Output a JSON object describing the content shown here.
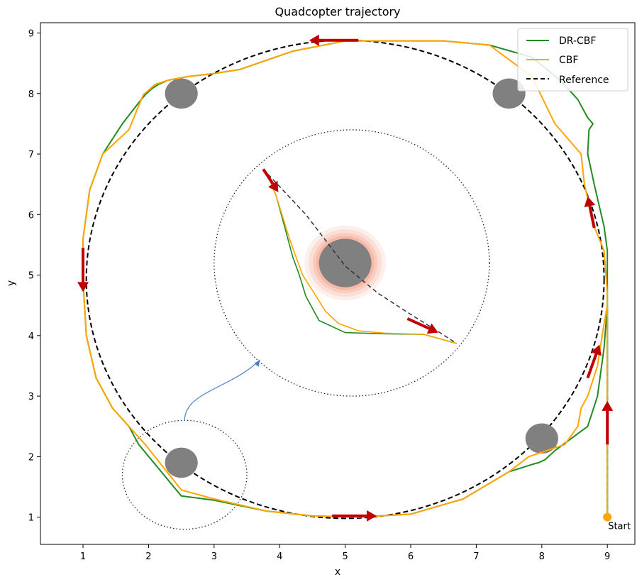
{
  "chart_data": {
    "type": "line",
    "title": "Quadcopter trajectory",
    "xlabel": "x",
    "ylabel": "y",
    "xlim": [
      0.35,
      9.42
    ],
    "ylim": [
      0.55,
      9.17
    ],
    "xticks": [
      1,
      2,
      3,
      4,
      5,
      6,
      7,
      8,
      9
    ],
    "yticks": [
      1,
      2,
      3,
      4,
      5,
      6,
      7,
      8,
      9
    ],
    "grid": false,
    "legend_position": "top-right",
    "legend": [
      "DR-CBF",
      "CBF",
      "Reference"
    ],
    "colors": {
      "dr_cbf": "#228B22",
      "cbf": "#FFA500",
      "reference": "#000000",
      "arrow": "#C00000",
      "obstacle": "#808080",
      "start": "#FFA500",
      "inset_connector": "#4A7EC7",
      "halo": "#F08060"
    },
    "series": [
      {
        "name": "DR-CBF",
        "style": "solid",
        "x": [
          9.0,
          9.0,
          9.0,
          9.0,
          9.0,
          9.0,
          8.95,
          8.8,
          8.7,
          8.72,
          8.78,
          8.7,
          8.55,
          8.3,
          7.85,
          7.2,
          6.5,
          5.6,
          5.0,
          4.2,
          3.4,
          3.0,
          2.6,
          2.3,
          2.15,
          2.05,
          1.95,
          1.85,
          1.6,
          1.3,
          1.1,
          1.0,
          1.0,
          1.05,
          1.2,
          1.45,
          1.7,
          1.7,
          1.85,
          2.5,
          3.0,
          3.8,
          4.5,
          5.2,
          6.0,
          6.8,
          7.5,
          7.85,
          7.95,
          8.05,
          8.2,
          8.45,
          8.7,
          8.85,
          8.95,
          9.0
        ],
        "y": [
          1.0,
          2.0,
          3.0,
          3.9,
          4.7,
          5.4,
          5.8,
          6.5,
          7.0,
          7.4,
          7.5,
          7.6,
          7.9,
          8.2,
          8.6,
          8.8,
          8.87,
          8.87,
          8.87,
          8.7,
          8.4,
          8.33,
          8.28,
          8.22,
          8.15,
          8.08,
          7.98,
          7.85,
          7.5,
          7.0,
          6.4,
          5.6,
          4.9,
          4.0,
          3.3,
          2.8,
          2.5,
          2.5,
          2.2,
          1.35,
          1.28,
          1.1,
          1.02,
          1.0,
          1.05,
          1.3,
          1.75,
          1.87,
          1.9,
          1.95,
          2.1,
          2.3,
          2.5,
          3.0,
          3.8,
          4.5
        ]
      },
      {
        "name": "CBF",
        "style": "solid",
        "x": [
          9.0,
          9.0,
          9.0,
          9.0,
          9.0,
          8.95,
          8.8,
          8.65,
          8.6,
          8.2,
          7.85,
          7.2,
          6.5,
          5.6,
          5.0,
          4.2,
          3.4,
          3.0,
          2.6,
          2.3,
          2.1,
          1.92,
          1.85,
          1.7,
          1.3,
          1.1,
          1.0,
          1.0,
          1.05,
          1.2,
          1.45,
          1.7,
          1.95,
          2.5,
          3.0,
          3.8,
          4.5,
          5.2,
          6.0,
          6.8,
          7.5,
          7.8,
          8.35,
          8.55,
          8.6,
          8.7,
          8.85,
          8.95,
          9.0
        ],
        "y": [
          1.0,
          2.0,
          3.0,
          3.9,
          4.7,
          5.4,
          5.8,
          6.5,
          7.0,
          7.5,
          8.28,
          8.8,
          8.87,
          8.87,
          8.87,
          8.7,
          8.4,
          8.33,
          8.28,
          8.22,
          8.15,
          7.98,
          7.8,
          7.4,
          7.0,
          6.4,
          5.6,
          4.9,
          4.0,
          3.3,
          2.8,
          2.5,
          2.2,
          1.45,
          1.3,
          1.1,
          1.02,
          1.0,
          1.05,
          1.3,
          1.75,
          2.0,
          2.2,
          2.5,
          2.8,
          3.0,
          3.5,
          4.2,
          4.5
        ]
      },
      {
        "name": "Reference",
        "style": "dashed"
      }
    ],
    "reference_circle": {
      "center": [
        5.0,
        4.93
      ],
      "radius": 3.95
    },
    "obstacles": [
      {
        "x": 2.5,
        "y": 8.0,
        "rx": 0.25,
        "ry": 0.25
      },
      {
        "x": 7.5,
        "y": 8.0,
        "rx": 0.25,
        "ry": 0.25
      },
      {
        "x": 8.0,
        "y": 2.3,
        "rx": 0.25,
        "ry": 0.25
      },
      {
        "x": 2.5,
        "y": 1.9,
        "rx": 0.25,
        "ry": 0.25
      }
    ],
    "inset_zoom": {
      "source_center": [
        2.55,
        1.7
      ],
      "source_radius": [
        0.95,
        0.9
      ],
      "target_center": [
        5.1,
        5.2
      ],
      "target_radius": [
        2.1,
        2.2
      ]
    },
    "inset_obstacle": {
      "x": 5.0,
      "y": 5.2,
      "r": 0.4,
      "halo_r": 0.62
    },
    "inset_series": {
      "dr_cbf": {
        "x": [
          3.75,
          3.8,
          3.95,
          4.1,
          4.2,
          4.3,
          4.4,
          4.6,
          5.0,
          5.6,
          6.2,
          6.6,
          6.7
        ],
        "y": [
          6.75,
          6.7,
          6.3,
          5.7,
          5.3,
          5.0,
          4.65,
          4.25,
          4.05,
          4.03,
          4.02,
          3.9,
          3.87
        ]
      },
      "cbf": {
        "x": [
          3.75,
          3.8,
          3.95,
          4.15,
          4.35,
          4.5,
          4.7,
          4.9,
          5.2,
          5.6,
          6.2,
          6.6,
          6.7
        ],
        "y": [
          6.75,
          6.7,
          6.3,
          5.6,
          5.0,
          4.75,
          4.4,
          4.2,
          4.08,
          4.04,
          4.02,
          3.9,
          3.87
        ]
      },
      "reference": {
        "x": [
          3.75,
          4.4,
          5.0,
          5.5,
          6.0,
          6.4,
          6.7
        ],
        "y": [
          6.75,
          6.0,
          5.15,
          4.7,
          4.35,
          4.08,
          3.87
        ]
      }
    },
    "arrows": [
      {
        "x1": 9.0,
        "y1": 2.2,
        "x2": 9.0,
        "y2": 2.92
      },
      {
        "x1": 8.7,
        "y1": 3.3,
        "x2": 8.88,
        "y2": 3.85
      },
      {
        "x1": 8.8,
        "y1": 5.78,
        "x2": 8.7,
        "y2": 6.3
      },
      {
        "x1": 5.2,
        "y1": 8.88,
        "x2": 4.45,
        "y2": 8.88
      },
      {
        "x1": 1.0,
        "y1": 5.45,
        "x2": 1.0,
        "y2": 4.72
      },
      {
        "x1": 4.8,
        "y1": 1.02,
        "x2": 5.48,
        "y2": 1.02
      },
      {
        "x1": 3.75,
        "y1": 6.75,
        "x2": 3.98,
        "y2": 6.37
      },
      {
        "x1": 5.95,
        "y1": 4.28,
        "x2": 6.42,
        "y2": 4.05
      }
    ],
    "start": {
      "x": 9.0,
      "y": 1.0,
      "label": "Start"
    }
  }
}
